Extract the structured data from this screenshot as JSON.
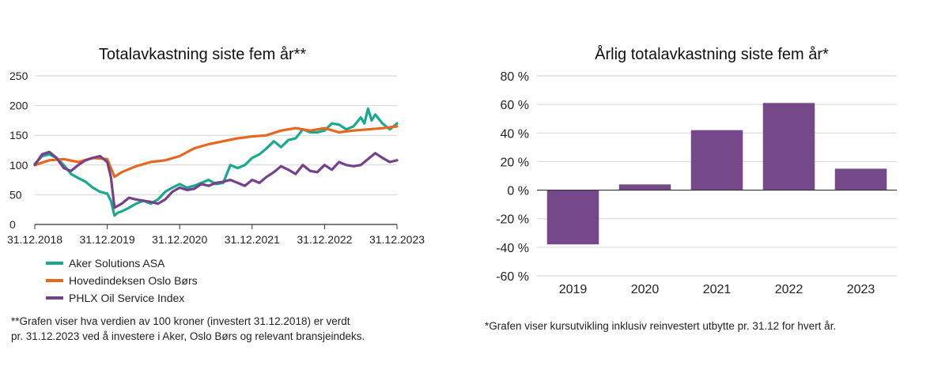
{
  "chart_data": [
    {
      "type": "line",
      "title": "Totalavkastning siste fem år**",
      "xlabel": "",
      "ylabel": "",
      "ylim": [
        0,
        250
      ],
      "yticks": [
        0,
        50,
        100,
        150,
        200,
        250
      ],
      "xlim": [
        0,
        5
      ],
      "categories": [
        "31.12.2018",
        "31.12.2019",
        "31.12.2020",
        "31.12.2021",
        "31.12.2022",
        "31.12.2023"
      ],
      "grid": true,
      "legend": "bottom-left",
      "series": [
        {
          "name": "Aker Solutions ASA",
          "color": "#1aa88e",
          "x": [
            0,
            0.1,
            0.2,
            0.3,
            0.4,
            0.5,
            0.6,
            0.7,
            0.8,
            0.9,
            1.0,
            1.05,
            1.1,
            1.15,
            1.2,
            1.3,
            1.4,
            1.5,
            1.6,
            1.7,
            1.8,
            1.9,
            2.0,
            2.1,
            2.2,
            2.3,
            2.4,
            2.5,
            2.6,
            2.7,
            2.8,
            2.9,
            3.0,
            3.1,
            3.2,
            3.3,
            3.4,
            3.5,
            3.6,
            3.7,
            3.8,
            3.9,
            4.0,
            4.1,
            4.2,
            4.3,
            4.4,
            4.5,
            4.55,
            4.6,
            4.65,
            4.7,
            4.8,
            4.9,
            5.0
          ],
          "values": [
            102,
            115,
            118,
            112,
            100,
            85,
            78,
            72,
            62,
            55,
            52,
            40,
            15,
            20,
            22,
            28,
            35,
            40,
            35,
            42,
            55,
            62,
            68,
            62,
            65,
            70,
            75,
            68,
            70,
            100,
            95,
            100,
            112,
            118,
            128,
            140,
            130,
            142,
            145,
            160,
            155,
            155,
            158,
            170,
            168,
            160,
            165,
            180,
            170,
            195,
            175,
            185,
            170,
            160,
            170
          ]
        },
        {
          "name": "Hovedindeksen Oslo Børs",
          "color": "#e8671e",
          "x": [
            0,
            0.2,
            0.4,
            0.6,
            0.8,
            1.0,
            1.05,
            1.1,
            1.2,
            1.4,
            1.6,
            1.8,
            2.0,
            2.2,
            2.4,
            2.6,
            2.8,
            3.0,
            3.2,
            3.4,
            3.6,
            3.8,
            4.0,
            4.2,
            4.4,
            4.6,
            4.8,
            5.0
          ],
          "values": [
            100,
            108,
            110,
            105,
            112,
            110,
            95,
            80,
            88,
            98,
            105,
            108,
            115,
            128,
            135,
            140,
            145,
            148,
            150,
            158,
            162,
            158,
            162,
            155,
            158,
            160,
            162,
            165
          ]
        },
        {
          "name": "PHLX Oil Service Index",
          "color": "#75428a",
          "x": [
            0,
            0.1,
            0.2,
            0.3,
            0.4,
            0.5,
            0.6,
            0.7,
            0.8,
            0.9,
            1.0,
            1.05,
            1.1,
            1.2,
            1.3,
            1.4,
            1.5,
            1.6,
            1.7,
            1.8,
            1.9,
            2.0,
            2.1,
            2.2,
            2.3,
            2.4,
            2.5,
            2.6,
            2.7,
            2.8,
            2.9,
            3.0,
            3.1,
            3.2,
            3.3,
            3.4,
            3.5,
            3.6,
            3.7,
            3.8,
            3.9,
            4.0,
            4.1,
            4.2,
            4.3,
            4.4,
            4.5,
            4.6,
            4.7,
            4.8,
            4.9,
            5.0
          ],
          "values": [
            100,
            118,
            122,
            112,
            95,
            90,
            100,
            108,
            112,
            115,
            105,
            80,
            28,
            35,
            45,
            42,
            40,
            38,
            35,
            42,
            55,
            62,
            58,
            60,
            68,
            65,
            70,
            72,
            75,
            70,
            65,
            75,
            70,
            80,
            88,
            98,
            92,
            85,
            100,
            90,
            88,
            100,
            92,
            105,
            100,
            98,
            100,
            110,
            120,
            112,
            105,
            108
          ]
        }
      ]
    },
    {
      "type": "bar",
      "title": "Årlig totalavkastning siste fem år*",
      "xlabel": "",
      "ylabel": "",
      "ylim": [
        -60,
        80
      ],
      "yticks": [
        -60,
        -40,
        -20,
        0,
        20,
        40,
        60,
        80
      ],
      "ytick_labels": [
        "-60 %",
        "-40 %",
        "-20 %",
        "0 %",
        "20 %",
        "40 %",
        "60 %",
        "80 %"
      ],
      "categories": [
        "2019",
        "2020",
        "2021",
        "2022",
        "2023"
      ],
      "values": [
        -38,
        4,
        42,
        61,
        15
      ],
      "color": "#75488a",
      "grid": true
    }
  ],
  "notes": {
    "left_line1": "**Grafen viser hva verdien av 100 kroner (investert 31.12.2018) er verdt",
    "left_line2": "pr. 31.12.2023 ved å investere i Aker, Oslo Børs og relevant bransjeindeks.",
    "right": "*Grafen viser kursutvikling inklusiv reinvestert utbytte pr. 31.12 for hvert år."
  }
}
